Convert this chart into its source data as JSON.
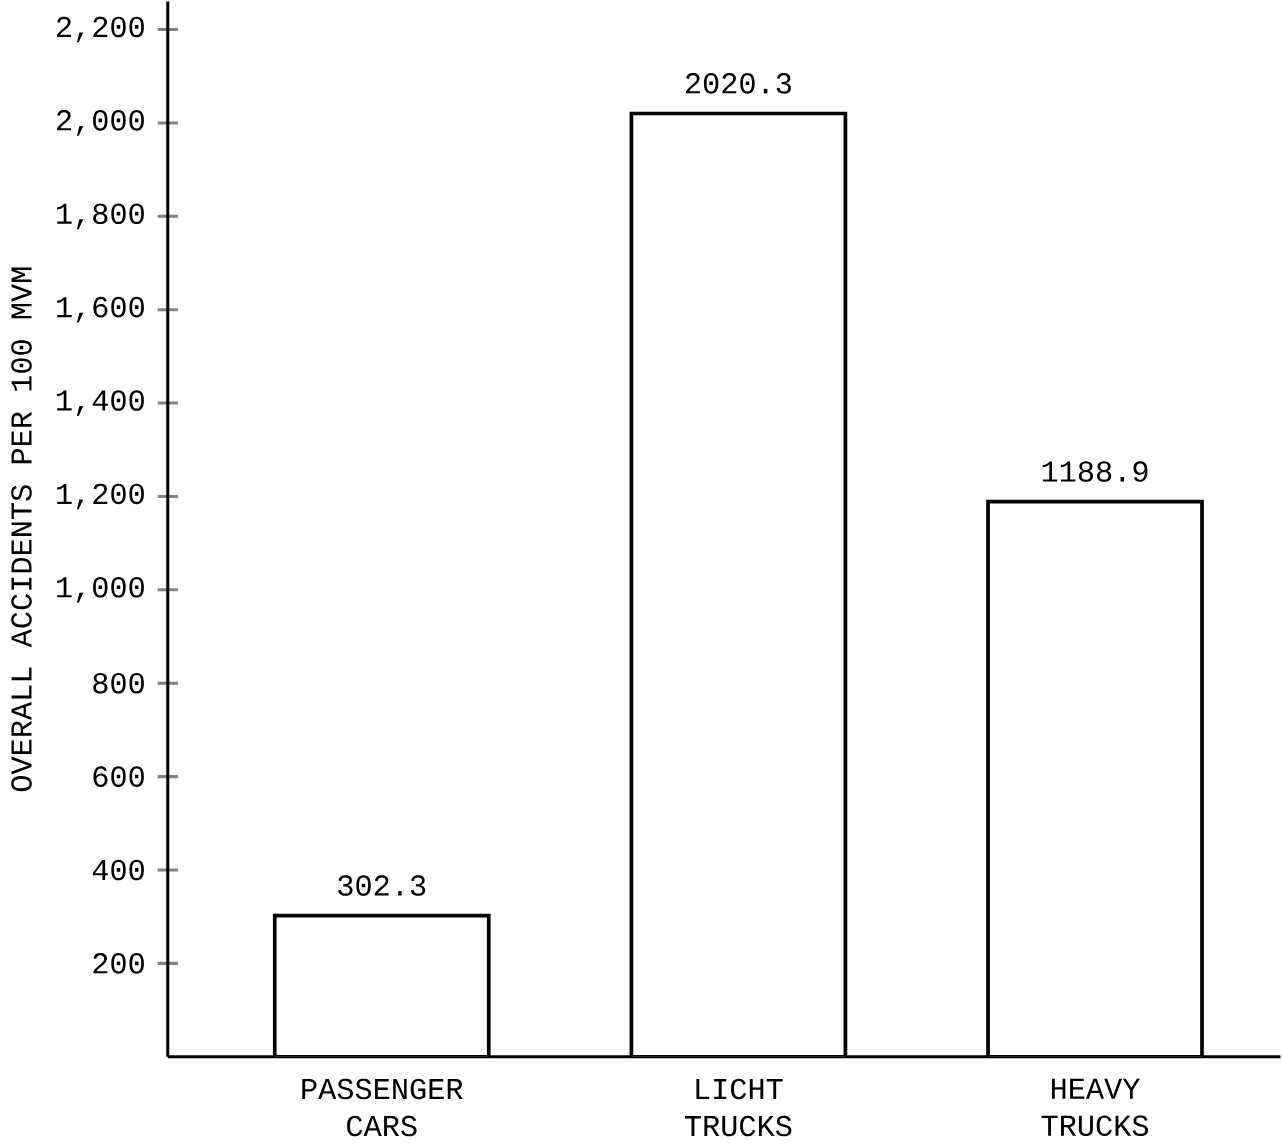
{
  "chart_data": {
    "type": "bar",
    "ylabel": "OVERALL ACCIDENTS PER 100 MVM",
    "categories": [
      "PASSENGER CARS",
      "LICHT TRUCKS",
      "HEAVY TRUCKS"
    ],
    "values": [
      302.3,
      2020.3,
      1188.9
    ],
    "color": "#ffffff",
    "data_labels": true,
    "grid": false,
    "ylim": [
      0,
      2260
    ],
    "yticks": [
      {
        "value": 200,
        "label": "200"
      },
      {
        "value": 400,
        "label": "400"
      },
      {
        "value": 600,
        "label": "600"
      },
      {
        "value": 800,
        "label": "800"
      },
      {
        "value": 1000,
        "label": "1,000"
      },
      {
        "value": 1200,
        "label": "1,200"
      },
      {
        "value": 1400,
        "label": "1,400"
      },
      {
        "value": 1600,
        "label": "1,600"
      },
      {
        "value": 1800,
        "label": "1,800"
      },
      {
        "value": 2000,
        "label": "2,000"
      },
      {
        "value": 2200,
        "label": "2,200"
      }
    ]
  }
}
